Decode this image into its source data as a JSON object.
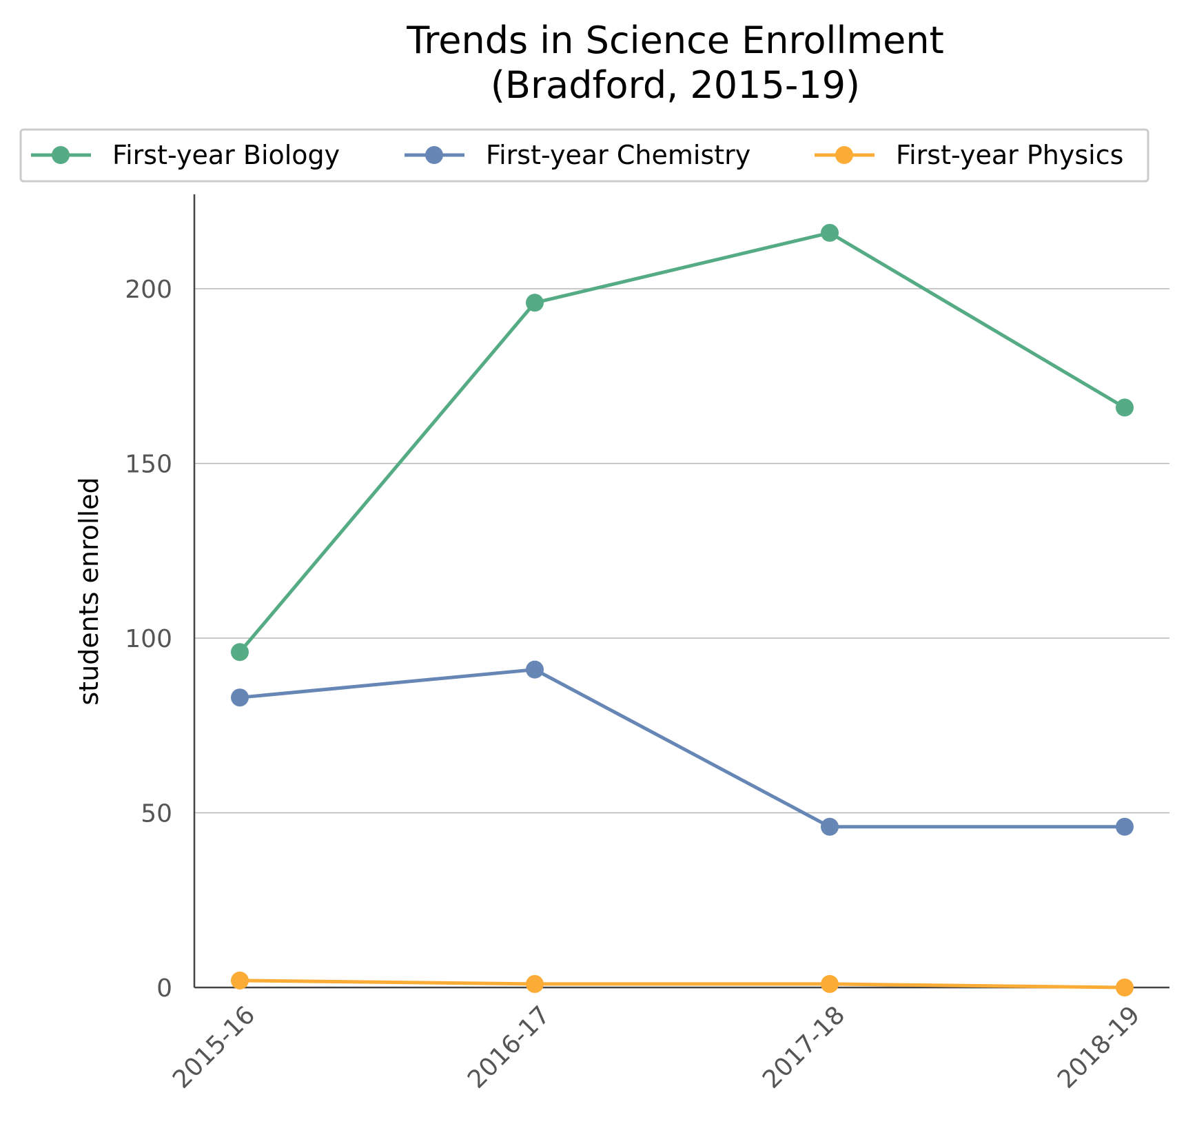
{
  "chart_data": {
    "type": "line",
    "title": [
      "Trends in Science Enrollment",
      "(Bradford, 2015-19)"
    ],
    "xlabel": "",
    "ylabel": "students enrolled",
    "categories": [
      "2015-16",
      "2016-17",
      "2017-18",
      "2018-19"
    ],
    "ylim": [
      0,
      227
    ],
    "yticks": [
      0,
      50,
      100,
      150,
      200
    ],
    "grid": "horizontal",
    "legend_position": "top",
    "series": [
      {
        "name": "First-year Biology",
        "color": "#55ab83",
        "values": [
          96,
          196,
          216,
          166
        ]
      },
      {
        "name": "First-year Chemistry",
        "color": "#6687b5",
        "values": [
          83,
          91,
          46,
          46
        ]
      },
      {
        "name": "First-year Physics",
        "color": "#fbac36",
        "values": [
          2,
          1,
          1,
          0
        ]
      }
    ]
  }
}
